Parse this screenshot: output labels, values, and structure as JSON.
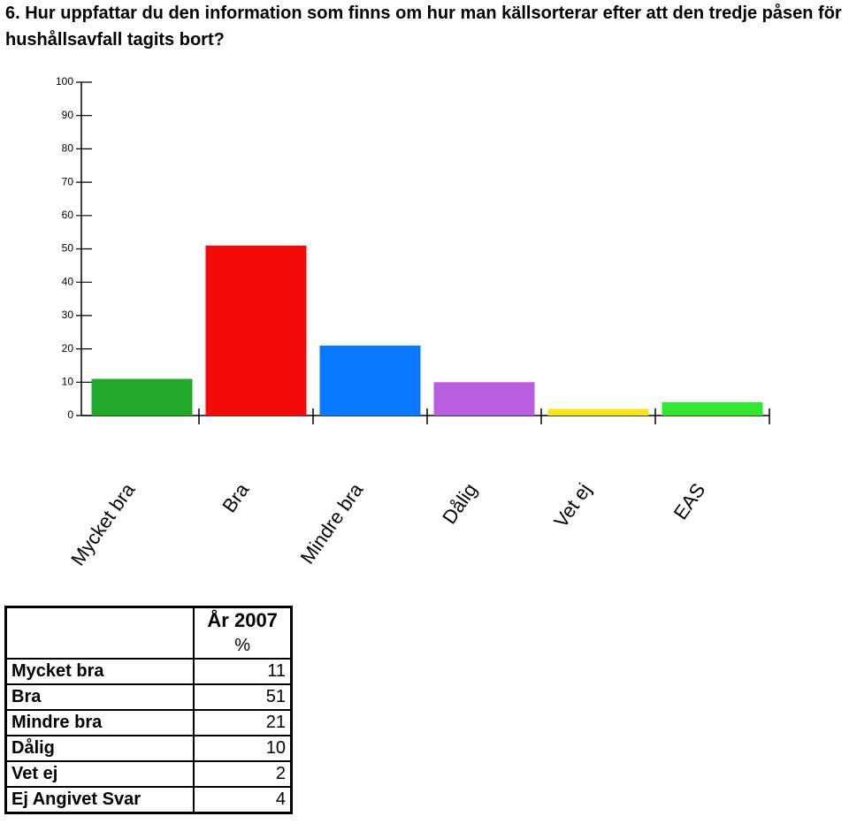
{
  "chart_data": {
    "type": "bar",
    "title": "6. Hur uppfattar du den information som finns om hur man källsorterar efter att den tredje påsen för hushållsavfall tagits bort?",
    "categories": [
      "Mycket bra",
      "Bra",
      "Mindre bra",
      "Dålig",
      "Vet ej",
      "EAS"
    ],
    "values": [
      11,
      51,
      21,
      10,
      2,
      4
    ],
    "colors": [
      "#22a82a",
      "#f50a0a",
      "#0a78ff",
      "#b85ce0",
      "#f5e61e",
      "#33e633"
    ],
    "ylim": [
      0,
      100
    ],
    "yticks": [
      0,
      10,
      20,
      30,
      40,
      50,
      60,
      70,
      80,
      90,
      100
    ],
    "grid": false
  },
  "table": {
    "header": [
      "År 2007",
      "%"
    ],
    "rows": [
      [
        "Mycket bra",
        11
      ],
      [
        "Bra",
        51
      ],
      [
        "Mindre bra",
        21
      ],
      [
        "Dålig",
        10
      ],
      [
        "Vet ej",
        2
      ],
      [
        "Ej Angivet Svar",
        4
      ]
    ]
  }
}
